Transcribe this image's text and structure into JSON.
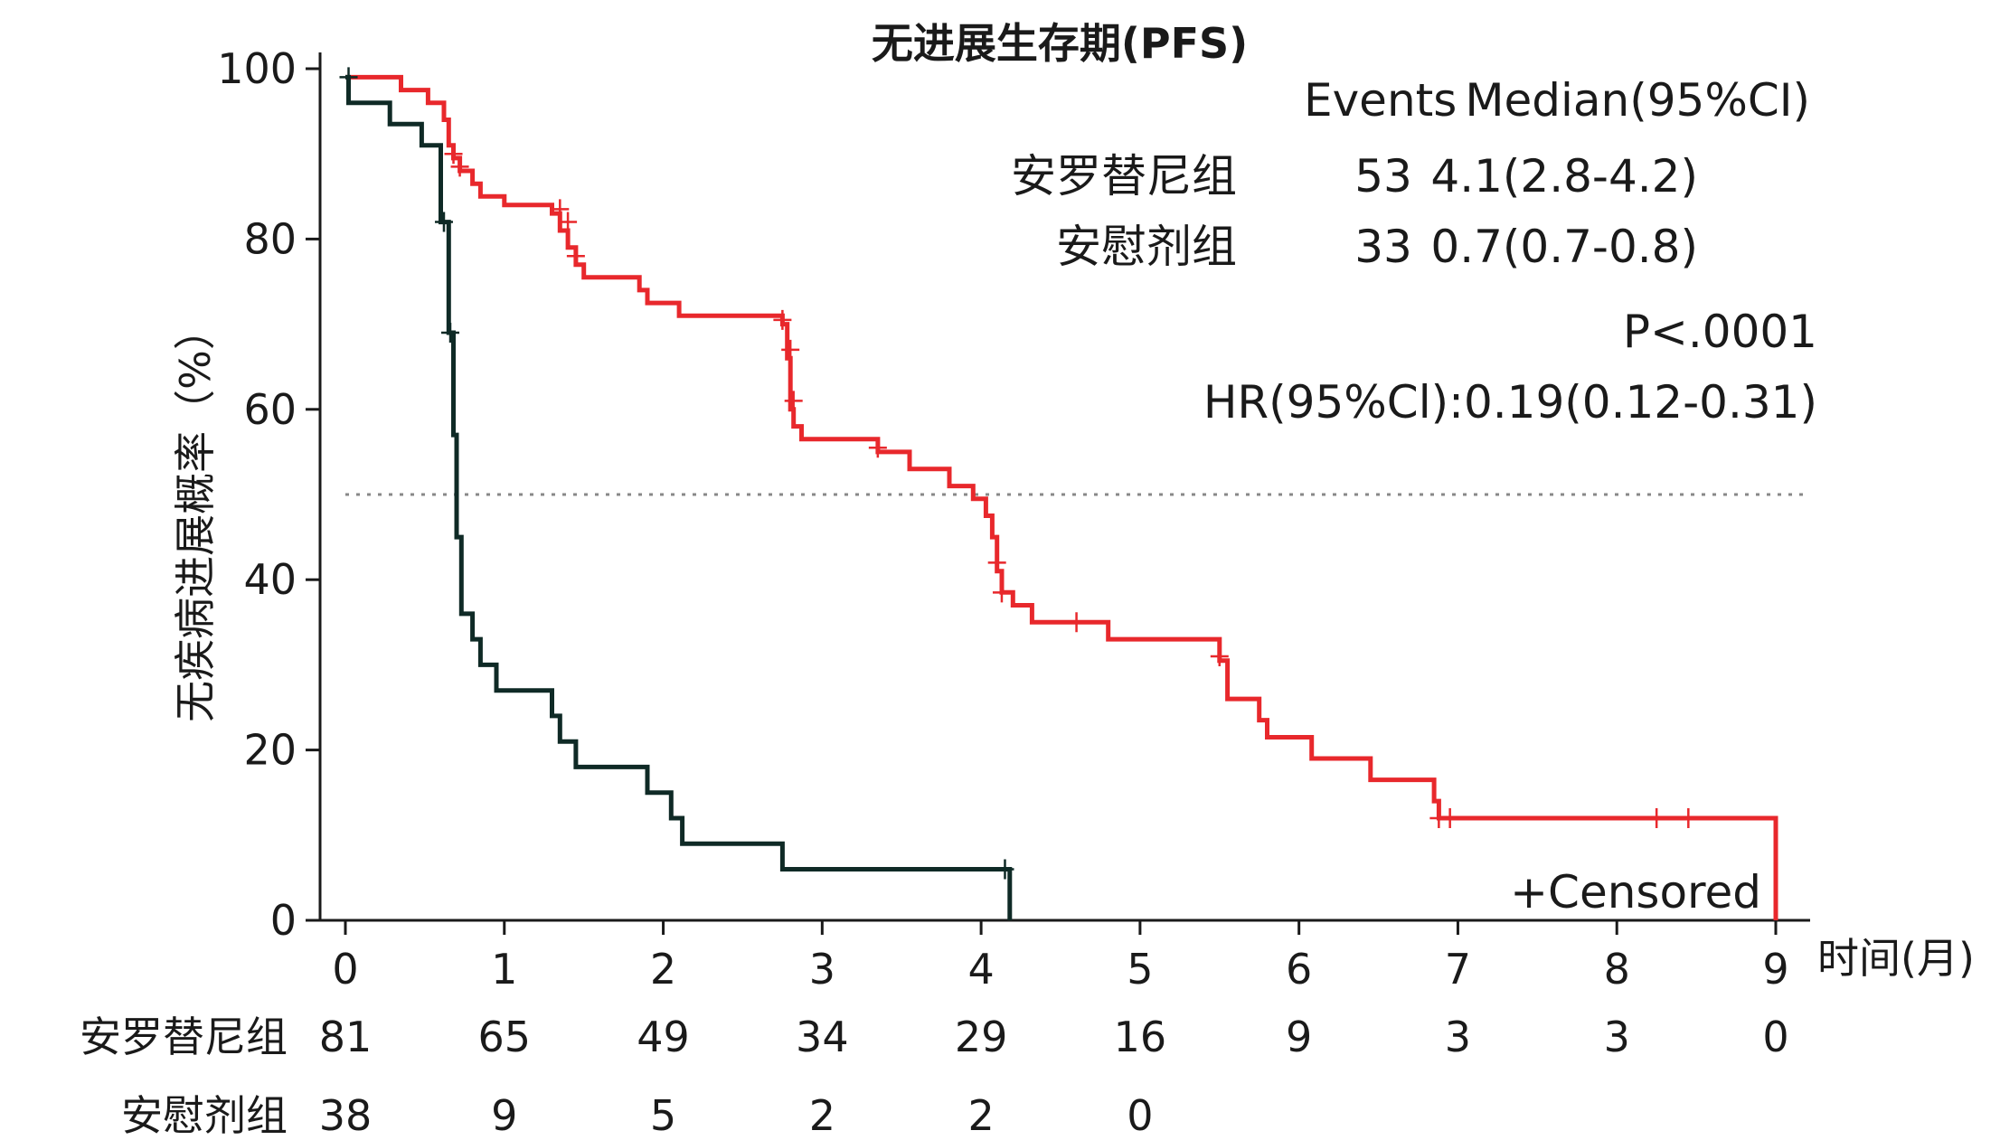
{
  "chart_data": {
    "type": "line",
    "title": "无进展生存期(PFS)",
    "xlabel": "时间(月)",
    "ylabel": "无疾病进展概率（%）",
    "xlim": [
      0,
      9
    ],
    "ylim": [
      0,
      100
    ],
    "x_ticks": [
      "0",
      "1",
      "2",
      "3",
      "4",
      "5",
      "6",
      "7",
      "8",
      "9"
    ],
    "y_ticks": [
      "0",
      "20",
      "40",
      "60",
      "80",
      "100"
    ],
    "grid": false,
    "median_line_y": 50,
    "colors": {
      "treatment": "#e8282c",
      "placebo": "#0f2a26",
      "median_line": "#888888"
    },
    "legend": {
      "header_events": "Events",
      "header_median": "Median(95%CI)",
      "rows": [
        {
          "name": "安罗替尼组",
          "events": "53",
          "median": "4.1(2.8-4.2)",
          "color": "#e8282c"
        },
        {
          "name": "安慰剂组",
          "events": "33",
          "median": "0.7(0.7-0.8)",
          "color": "#1a1a1a"
        }
      ],
      "p_value": "P<.0001",
      "hr": "HR(95%Cl):0.19(0.12-0.31)",
      "censored_label": "+Censored"
    },
    "series": [
      {
        "name": "安罗替尼组",
        "color": "#e8282c",
        "steps": [
          [
            0,
            99
          ],
          [
            0.35,
            99
          ],
          [
            0.35,
            97.5
          ],
          [
            0.52,
            97.5
          ],
          [
            0.52,
            96
          ],
          [
            0.62,
            96
          ],
          [
            0.62,
            94
          ],
          [
            0.65,
            94
          ],
          [
            0.65,
            91
          ],
          [
            0.68,
            91
          ],
          [
            0.68,
            89.5
          ],
          [
            0.72,
            89.5
          ],
          [
            0.72,
            88
          ],
          [
            0.8,
            88
          ],
          [
            0.8,
            86.5
          ],
          [
            0.85,
            86.5
          ],
          [
            0.85,
            85
          ],
          [
            1.0,
            85
          ],
          [
            1.0,
            84
          ],
          [
            1.3,
            84
          ],
          [
            1.3,
            83
          ],
          [
            1.35,
            83
          ],
          [
            1.35,
            81
          ],
          [
            1.4,
            81
          ],
          [
            1.4,
            79
          ],
          [
            1.45,
            79
          ],
          [
            1.45,
            77
          ],
          [
            1.5,
            77
          ],
          [
            1.5,
            75.5
          ],
          [
            1.85,
            75.5
          ],
          [
            1.85,
            74
          ],
          [
            1.9,
            74
          ],
          [
            1.9,
            72.5
          ],
          [
            2.1,
            72.5
          ],
          [
            2.1,
            71
          ],
          [
            2.75,
            71
          ],
          [
            2.75,
            70
          ],
          [
            2.78,
            70
          ],
          [
            2.78,
            66
          ],
          [
            2.8,
            66
          ],
          [
            2.8,
            60
          ],
          [
            2.82,
            60
          ],
          [
            2.82,
            58
          ],
          [
            2.87,
            58
          ],
          [
            2.87,
            56.5
          ],
          [
            3.35,
            56.5
          ],
          [
            3.35,
            55
          ],
          [
            3.55,
            55
          ],
          [
            3.55,
            53
          ],
          [
            3.8,
            53
          ],
          [
            3.8,
            51
          ],
          [
            3.95,
            51
          ],
          [
            3.95,
            49.5
          ],
          [
            4.03,
            49.5
          ],
          [
            4.03,
            47.5
          ],
          [
            4.07,
            47.5
          ],
          [
            4.07,
            45
          ],
          [
            4.1,
            45
          ],
          [
            4.1,
            41
          ],
          [
            4.13,
            41
          ],
          [
            4.13,
            38.5
          ],
          [
            4.2,
            38.5
          ],
          [
            4.2,
            37
          ],
          [
            4.32,
            37
          ],
          [
            4.32,
            35
          ],
          [
            4.8,
            35
          ],
          [
            4.8,
            33
          ],
          [
            5.5,
            33
          ],
          [
            5.5,
            30.5
          ],
          [
            5.55,
            30.5
          ],
          [
            5.55,
            26
          ],
          [
            5.75,
            26
          ],
          [
            5.75,
            23.5
          ],
          [
            5.8,
            23.5
          ],
          [
            5.8,
            21.5
          ],
          [
            6.08,
            21.5
          ],
          [
            6.08,
            19
          ],
          [
            6.45,
            19
          ],
          [
            6.45,
            16.5
          ],
          [
            6.85,
            16.5
          ],
          [
            6.85,
            14
          ],
          [
            6.88,
            14
          ],
          [
            6.88,
            12
          ],
          [
            9.0,
            12
          ],
          [
            9.0,
            0
          ]
        ],
        "censored": [
          [
            0.68,
            90
          ],
          [
            0.72,
            88.5
          ],
          [
            1.35,
            83.5
          ],
          [
            1.4,
            82
          ],
          [
            1.45,
            78
          ],
          [
            2.75,
            70.5
          ],
          [
            2.8,
            67
          ],
          [
            2.82,
            61
          ],
          [
            3.35,
            55.5
          ],
          [
            4.1,
            42
          ],
          [
            4.13,
            38.5
          ],
          [
            4.6,
            35
          ],
          [
            5.5,
            31
          ],
          [
            6.88,
            12
          ],
          [
            6.95,
            12
          ],
          [
            8.25,
            12
          ],
          [
            8.45,
            12
          ]
        ]
      },
      {
        "name": "安慰剂组",
        "color": "#0f2a26",
        "steps": [
          [
            0,
            99
          ],
          [
            0.02,
            99
          ],
          [
            0.02,
            96
          ],
          [
            0.28,
            96
          ],
          [
            0.28,
            93.5
          ],
          [
            0.48,
            93.5
          ],
          [
            0.48,
            91
          ],
          [
            0.6,
            91
          ],
          [
            0.6,
            82
          ],
          [
            0.65,
            82
          ],
          [
            0.65,
            69
          ],
          [
            0.68,
            69
          ],
          [
            0.68,
            57
          ],
          [
            0.7,
            57
          ],
          [
            0.7,
            45
          ],
          [
            0.73,
            45
          ],
          [
            0.73,
            36
          ],
          [
            0.8,
            36
          ],
          [
            0.8,
            33
          ],
          [
            0.85,
            33
          ],
          [
            0.85,
            30
          ],
          [
            0.95,
            30
          ],
          [
            0.95,
            27
          ],
          [
            1.3,
            27
          ],
          [
            1.3,
            24
          ],
          [
            1.35,
            24
          ],
          [
            1.35,
            21
          ],
          [
            1.45,
            21
          ],
          [
            1.45,
            18
          ],
          [
            1.9,
            18
          ],
          [
            1.9,
            15
          ],
          [
            2.05,
            15
          ],
          [
            2.05,
            12
          ],
          [
            2.12,
            12
          ],
          [
            2.12,
            9
          ],
          [
            2.75,
            9
          ],
          [
            2.75,
            6
          ],
          [
            4.18,
            6
          ],
          [
            4.18,
            0
          ]
        ],
        "censored": [
          [
            0.02,
            99
          ],
          [
            0.62,
            82
          ],
          [
            0.66,
            69
          ],
          [
            4.15,
            6
          ]
        ]
      }
    ],
    "risk_table": {
      "rows": [
        {
          "name": "安罗替尼组",
          "values": [
            "81",
            "65",
            "49",
            "34",
            "29",
            "16",
            "9",
            "3",
            "3",
            "0"
          ]
        },
        {
          "name": "安慰剂组",
          "values": [
            "38",
            "9",
            "5",
            "2",
            "2",
            "0",
            "",
            "",
            "",
            ""
          ]
        }
      ]
    }
  }
}
